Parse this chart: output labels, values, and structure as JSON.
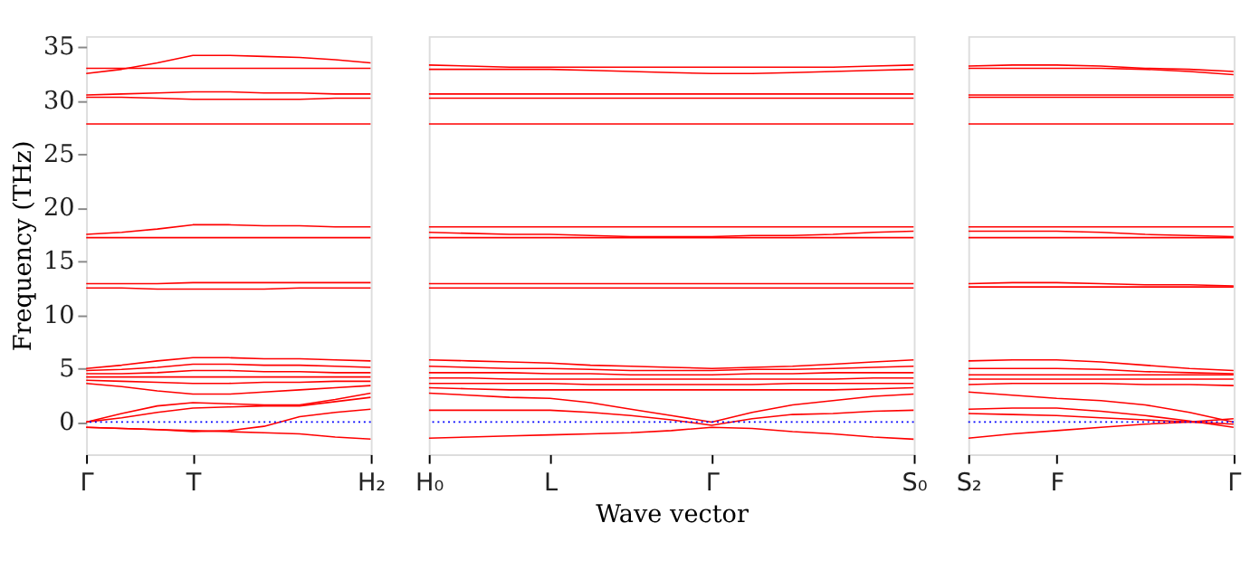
{
  "chart_data": [
    {
      "type": "line",
      "ylabel": "Frequency (THz)",
      "categories": [
        "Γ",
        null,
        null,
        "T",
        null,
        null,
        null,
        null,
        "H₂"
      ],
      "ylim": [
        -3,
        36
      ],
      "yticks": [
        0,
        5,
        10,
        15,
        20,
        25,
        30,
        35
      ],
      "grid": false,
      "legend": false,
      "line_style": "solid",
      "marker": "none",
      "ref_lines": [
        {
          "axis": "y",
          "value": 0,
          "color": "#0000ff",
          "line_style": "dotted"
        }
      ],
      "series": [
        {
          "color": "#ff0000",
          "values": [
            32.5,
            32.9,
            33.5,
            34.2,
            34.2,
            34.1,
            34.0,
            33.8,
            33.5
          ]
        },
        {
          "color": "#ff0000",
          "values": [
            33.0,
            33.0,
            33.0,
            33.0,
            33.0,
            33.0,
            33.0,
            33.0,
            33.0
          ]
        },
        {
          "color": "#ff0000",
          "values": [
            30.5,
            30.6,
            30.7,
            30.8,
            30.8,
            30.7,
            30.7,
            30.6,
            30.6
          ]
        },
        {
          "color": "#ff0000",
          "values": [
            30.3,
            30.3,
            30.2,
            30.1,
            30.1,
            30.1,
            30.1,
            30.2,
            30.2
          ]
        },
        {
          "color": "#ff0000",
          "values": [
            27.8,
            27.8,
            27.8,
            27.8,
            27.8,
            27.8,
            27.8,
            27.8,
            27.8
          ]
        },
        {
          "color": "#ff0000",
          "values": [
            17.5,
            17.7,
            18.0,
            18.4,
            18.4,
            18.3,
            18.3,
            18.2,
            18.2
          ]
        },
        {
          "color": "#ff0000",
          "values": [
            17.2,
            17.2,
            17.2,
            17.2,
            17.2,
            17.2,
            17.2,
            17.2,
            17.2
          ]
        },
        {
          "color": "#ff0000",
          "values": [
            12.9,
            12.9,
            12.9,
            13.0,
            13.0,
            13.0,
            13.0,
            13.0,
            13.0
          ]
        },
        {
          "color": "#ff0000",
          "values": [
            12.5,
            12.5,
            12.4,
            12.4,
            12.4,
            12.4,
            12.5,
            12.5,
            12.5
          ]
        },
        {
          "color": "#ff0000",
          "values": [
            5.0,
            5.3,
            5.7,
            6.0,
            6.0,
            5.9,
            5.9,
            5.8,
            5.7
          ]
        },
        {
          "color": "#ff0000",
          "values": [
            4.8,
            4.9,
            5.1,
            5.4,
            5.4,
            5.3,
            5.3,
            5.2,
            5.1
          ]
        },
        {
          "color": "#ff0000",
          "values": [
            4.5,
            4.5,
            4.6,
            4.8,
            4.8,
            4.7,
            4.7,
            4.6,
            4.6
          ]
        },
        {
          "color": "#ff0000",
          "values": [
            4.2,
            4.2,
            4.2,
            4.2,
            4.2,
            4.2,
            4.2,
            4.2,
            4.2
          ]
        },
        {
          "color": "#ff0000",
          "values": [
            3.9,
            3.8,
            3.7,
            3.6,
            3.6,
            3.7,
            3.7,
            3.8,
            3.8
          ]
        },
        {
          "color": "#ff0000",
          "values": [
            3.6,
            3.3,
            2.9,
            2.6,
            2.6,
            2.8,
            3.0,
            3.2,
            3.4
          ]
        },
        {
          "color": "#ff0000",
          "values": [
            0.0,
            0.8,
            1.5,
            1.8,
            1.7,
            1.6,
            1.6,
            2.1,
            2.7
          ]
        },
        {
          "color": "#ff0000",
          "values": [
            0.0,
            0.4,
            0.9,
            1.3,
            1.4,
            1.5,
            1.5,
            1.9,
            2.3
          ]
        },
        {
          "color": "#ff0000",
          "values": [
            -0.5,
            -0.6,
            -0.7,
            -0.9,
            -0.8,
            -0.4,
            0.5,
            0.9,
            1.2
          ]
        },
        {
          "color": "#ff0000",
          "values": [
            -0.5,
            -0.6,
            -0.7,
            -0.8,
            -0.9,
            -1.0,
            -1.1,
            -1.4,
            -1.6
          ]
        }
      ]
    },
    {
      "type": "line",
      "xlabel": "Wave vector",
      "categories": [
        "H₀",
        null,
        null,
        "L",
        null,
        null,
        null,
        "Γ",
        null,
        null,
        null,
        null,
        "S₀"
      ],
      "ylim": [
        -3,
        36
      ],
      "tick_labels": "x",
      "grid": false,
      "legend": false,
      "line_style": "solid",
      "marker": "none",
      "ref_lines": [
        {
          "axis": "y",
          "value": 0,
          "color": "#0000ff",
          "line_style": "dotted"
        }
      ],
      "series": [
        {
          "color": "#ff0000",
          "values": [
            33.3,
            33.2,
            33.1,
            33.1,
            33.1,
            33.1,
            33.1,
            33.1,
            33.1,
            33.1,
            33.1,
            33.2,
            33.3
          ]
        },
        {
          "color": "#ff0000",
          "values": [
            32.9,
            32.9,
            32.9,
            32.9,
            32.8,
            32.7,
            32.6,
            32.5,
            32.5,
            32.6,
            32.7,
            32.8,
            32.9
          ]
        },
        {
          "color": "#ff0000",
          "values": [
            30.6,
            30.6,
            30.6,
            30.6,
            30.6,
            30.6,
            30.6,
            30.6,
            30.6,
            30.6,
            30.6,
            30.6,
            30.6
          ]
        },
        {
          "color": "#ff0000",
          "values": [
            30.2,
            30.2,
            30.2,
            30.2,
            30.2,
            30.2,
            30.2,
            30.2,
            30.2,
            30.2,
            30.2,
            30.2,
            30.2
          ]
        },
        {
          "color": "#ff0000",
          "values": [
            27.8,
            27.8,
            27.8,
            27.8,
            27.8,
            27.8,
            27.8,
            27.8,
            27.8,
            27.8,
            27.8,
            27.8,
            27.8
          ]
        },
        {
          "color": "#ff0000",
          "values": [
            18.2,
            18.2,
            18.2,
            18.2,
            18.2,
            18.2,
            18.2,
            18.2,
            18.2,
            18.2,
            18.2,
            18.2,
            18.2
          ]
        },
        {
          "color": "#ff0000",
          "values": [
            17.7,
            17.6,
            17.5,
            17.5,
            17.4,
            17.3,
            17.3,
            17.3,
            17.4,
            17.4,
            17.5,
            17.7,
            17.8
          ]
        },
        {
          "color": "#ff0000",
          "values": [
            17.2,
            17.2,
            17.2,
            17.2,
            17.2,
            17.2,
            17.2,
            17.2,
            17.2,
            17.2,
            17.2,
            17.2,
            17.2
          ]
        },
        {
          "color": "#ff0000",
          "values": [
            12.9,
            12.9,
            12.9,
            12.9,
            12.9,
            12.9,
            12.9,
            12.9,
            12.9,
            12.9,
            12.9,
            12.9,
            12.9
          ]
        },
        {
          "color": "#ff0000",
          "values": [
            12.5,
            12.5,
            12.5,
            12.5,
            12.5,
            12.5,
            12.5,
            12.5,
            12.5,
            12.5,
            12.5,
            12.5,
            12.5
          ]
        },
        {
          "color": "#ff0000",
          "values": [
            5.8,
            5.7,
            5.6,
            5.5,
            5.3,
            5.2,
            5.1,
            5.0,
            5.1,
            5.2,
            5.4,
            5.6,
            5.8
          ]
        },
        {
          "color": "#ff0000",
          "values": [
            5.2,
            5.1,
            5.0,
            5.0,
            4.9,
            4.8,
            4.8,
            4.8,
            4.9,
            4.9,
            5.0,
            5.1,
            5.2
          ]
        },
        {
          "color": "#ff0000",
          "values": [
            4.6,
            4.6,
            4.6,
            4.5,
            4.5,
            4.4,
            4.4,
            4.4,
            4.5,
            4.5,
            4.6,
            4.6,
            4.6
          ]
        },
        {
          "color": "#ff0000",
          "values": [
            4.1,
            4.1,
            4.0,
            4.0,
            4.0,
            4.0,
            4.0,
            4.0,
            4.0,
            4.0,
            4.0,
            4.1,
            4.1
          ]
        },
        {
          "color": "#ff0000",
          "values": [
            3.6,
            3.6,
            3.6,
            3.6,
            3.5,
            3.5,
            3.5,
            3.5,
            3.5,
            3.6,
            3.6,
            3.6,
            3.6
          ]
        },
        {
          "color": "#ff0000",
          "values": [
            3.2,
            3.1,
            3.0,
            3.0,
            3.0,
            3.0,
            3.0,
            3.0,
            3.0,
            3.0,
            3.0,
            3.1,
            3.2
          ]
        },
        {
          "color": "#ff0000",
          "values": [
            2.7,
            2.5,
            2.3,
            2.2,
            1.8,
            1.2,
            0.6,
            0.0,
            0.9,
            1.6,
            2.0,
            2.4,
            2.6
          ]
        },
        {
          "color": "#ff0000",
          "values": [
            1.1,
            1.1,
            1.1,
            1.1,
            0.9,
            0.6,
            0.2,
            -0.3,
            0.3,
            0.7,
            0.8,
            1.0,
            1.1
          ]
        },
        {
          "color": "#ff0000",
          "values": [
            -1.5,
            -1.4,
            -1.3,
            -1.2,
            -1.1,
            -1.0,
            -0.8,
            -0.5,
            -0.6,
            -0.9,
            -1.1,
            -1.4,
            -1.6
          ]
        }
      ]
    },
    {
      "type": "line",
      "categories": [
        "S₂",
        null,
        "F",
        null,
        null,
        null,
        "Γ"
      ],
      "ylim": [
        -3,
        36
      ],
      "tick_labels": "x",
      "grid": false,
      "legend": false,
      "line_style": "solid",
      "marker": "none",
      "ref_lines": [
        {
          "axis": "y",
          "value": 0,
          "color": "#0000ff",
          "line_style": "dotted"
        }
      ],
      "series": [
        {
          "color": "#ff0000",
          "values": [
            33.2,
            33.3,
            33.3,
            33.2,
            33.0,
            32.9,
            32.7
          ]
        },
        {
          "color": "#ff0000",
          "values": [
            33.0,
            33.0,
            33.0,
            33.0,
            32.9,
            32.7,
            32.4
          ]
        },
        {
          "color": "#ff0000",
          "values": [
            30.5,
            30.5,
            30.5,
            30.5,
            30.5,
            30.5,
            30.5
          ]
        },
        {
          "color": "#ff0000",
          "values": [
            30.3,
            30.3,
            30.3,
            30.3,
            30.3,
            30.3,
            30.3
          ]
        },
        {
          "color": "#ff0000",
          "values": [
            27.8,
            27.8,
            27.8,
            27.8,
            27.8,
            27.8,
            27.8
          ]
        },
        {
          "color": "#ff0000",
          "values": [
            18.2,
            18.2,
            18.2,
            18.2,
            18.2,
            18.2,
            18.2
          ]
        },
        {
          "color": "#ff0000",
          "values": [
            17.8,
            17.8,
            17.8,
            17.7,
            17.5,
            17.4,
            17.3
          ]
        },
        {
          "color": "#ff0000",
          "values": [
            17.2,
            17.2,
            17.2,
            17.2,
            17.2,
            17.2,
            17.2
          ]
        },
        {
          "color": "#ff0000",
          "values": [
            12.9,
            13.0,
            13.0,
            12.9,
            12.8,
            12.8,
            12.7
          ]
        },
        {
          "color": "#ff0000",
          "values": [
            12.6,
            12.6,
            12.6,
            12.6,
            12.6,
            12.6,
            12.6
          ]
        },
        {
          "color": "#ff0000",
          "values": [
            5.7,
            5.8,
            5.8,
            5.6,
            5.3,
            5.0,
            4.8
          ]
        },
        {
          "color": "#ff0000",
          "values": [
            5.0,
            5.0,
            5.0,
            4.9,
            4.7,
            4.6,
            4.5
          ]
        },
        {
          "color": "#ff0000",
          "values": [
            4.4,
            4.4,
            4.4,
            4.4,
            4.4,
            4.4,
            4.4
          ]
        },
        {
          "color": "#ff0000",
          "values": [
            4.0,
            4.0,
            4.0,
            4.0,
            4.0,
            4.0,
            4.0
          ]
        },
        {
          "color": "#ff0000",
          "values": [
            3.5,
            3.6,
            3.6,
            3.6,
            3.5,
            3.5,
            3.4
          ]
        },
        {
          "color": "#ff0000",
          "values": [
            2.8,
            2.5,
            2.2,
            2.0,
            1.6,
            0.9,
            0.0
          ]
        },
        {
          "color": "#ff0000",
          "values": [
            1.2,
            1.3,
            1.3,
            1.0,
            0.6,
            0.1,
            -0.5
          ]
        },
        {
          "color": "#ff0000",
          "values": [
            0.8,
            0.7,
            0.6,
            0.4,
            0.2,
            0.0,
            -0.2
          ]
        },
        {
          "color": "#ff0000",
          "values": [
            -1.5,
            -1.1,
            -0.8,
            -0.5,
            -0.2,
            0.0,
            0.3
          ]
        }
      ]
    }
  ]
}
